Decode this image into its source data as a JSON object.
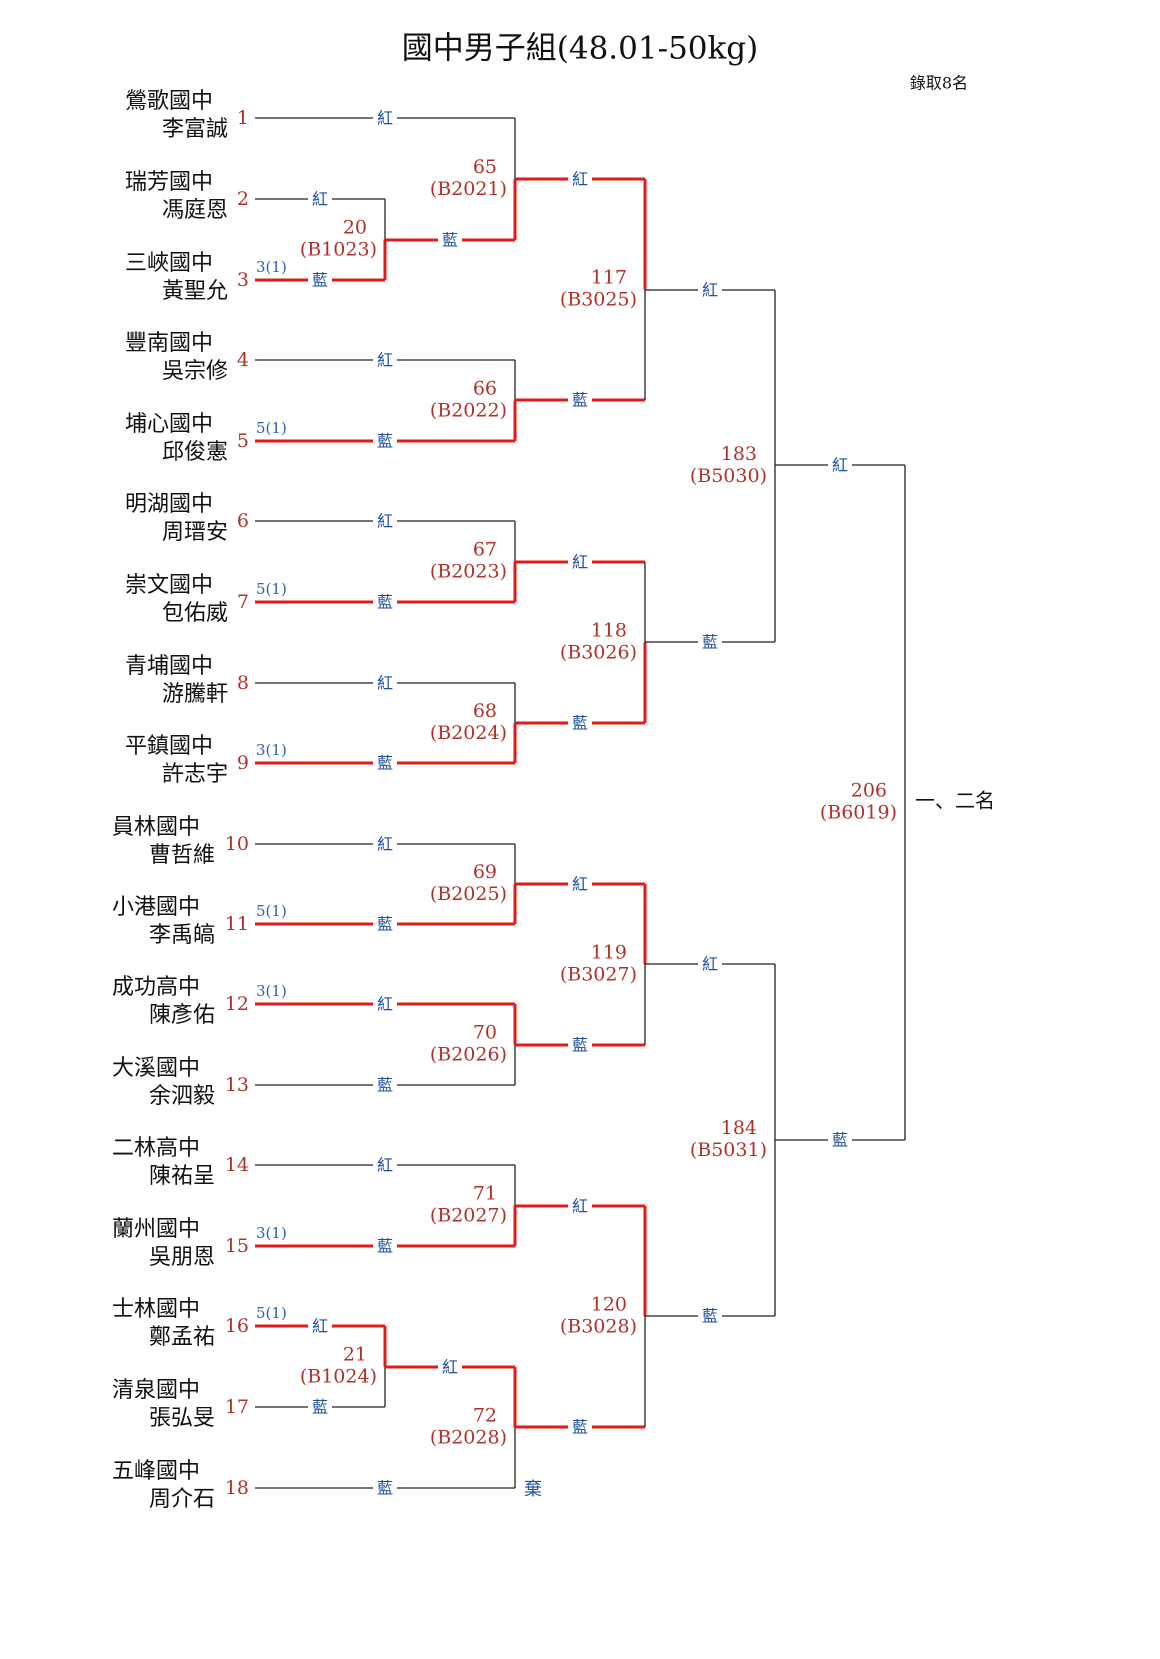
{
  "title": "國中男子組(48.01-50kg)",
  "note": "錄取8名",
  "players": [
    {
      "seed": 1,
      "school": "鶯歌國中",
      "name": "李富誠"
    },
    {
      "seed": 2,
      "school": "瑞芳國中",
      "name": "馮庭恩"
    },
    {
      "seed": 3,
      "school": "三峽國中",
      "name": "黃聖允",
      "score": "3(1)"
    },
    {
      "seed": 4,
      "school": "豐南國中",
      "name": "吳宗修"
    },
    {
      "seed": 5,
      "school": "埔心國中",
      "name": "邱俊憲",
      "score": "5(1)"
    },
    {
      "seed": 6,
      "school": "明湖國中",
      "name": "周瑨安"
    },
    {
      "seed": 7,
      "school": "崇文國中",
      "name": "包佑威",
      "score": "5(1)"
    },
    {
      "seed": 8,
      "school": "青埔國中",
      "name": "游騰軒"
    },
    {
      "seed": 9,
      "school": "平鎮國中",
      "name": "許志宇",
      "score": "3(1)"
    },
    {
      "seed": 10,
      "school": "員林國中",
      "name": "曹哲維"
    },
    {
      "seed": 11,
      "school": "小港國中",
      "name": "李禹皜",
      "score": "5(1)"
    },
    {
      "seed": 12,
      "school": "成功高中",
      "name": "陳彥佑",
      "score": "3(1)"
    },
    {
      "seed": 13,
      "school": "大溪國中",
      "name": "余泗毅"
    },
    {
      "seed": 14,
      "school": "二林高中",
      "name": "陳祐呈"
    },
    {
      "seed": 15,
      "school": "蘭州國中",
      "name": "吳朋恩",
      "score": "3(1)"
    },
    {
      "seed": 16,
      "school": "士林國中",
      "name": "鄭孟祐",
      "score": "5(1)"
    },
    {
      "seed": 17,
      "school": "清泉國中",
      "name": "張弘旻"
    },
    {
      "seed": 18,
      "school": "五峰國中",
      "name": "周介石"
    }
  ],
  "matches": [
    {
      "number": 20,
      "code": "(B1023)",
      "slots": [
        "紅",
        "藍"
      ]
    },
    {
      "number": 21,
      "code": "(B1024)",
      "slots": [
        "紅",
        "藍"
      ]
    },
    {
      "number": 65,
      "code": "(B2021)",
      "slots": [
        "紅",
        "藍"
      ]
    },
    {
      "number": 66,
      "code": "(B2022)",
      "slots": [
        "紅",
        "藍"
      ]
    },
    {
      "number": 67,
      "code": "(B2023)",
      "slots": [
        "紅",
        "藍"
      ]
    },
    {
      "number": 68,
      "code": "(B2024)",
      "slots": [
        "紅",
        "藍"
      ]
    },
    {
      "number": 69,
      "code": "(B2025)",
      "slots": [
        "紅",
        "藍"
      ]
    },
    {
      "number": 70,
      "code": "(B2026)",
      "slots": [
        "紅",
        "藍"
      ]
    },
    {
      "number": 71,
      "code": "(B2027)",
      "slots": [
        "紅",
        "藍"
      ]
    },
    {
      "number": 72,
      "code": "(B2028)",
      "slots": [
        "紅",
        "藍"
      ]
    },
    {
      "number": 117,
      "code": "(B3025)",
      "slots": [
        "紅",
        "藍"
      ]
    },
    {
      "number": 118,
      "code": "(B3026)",
      "slots": [
        "紅",
        "藍"
      ]
    },
    {
      "number": 119,
      "code": "(B3027)",
      "slots": [
        "紅",
        "藍"
      ]
    },
    {
      "number": 120,
      "code": "(B3028)",
      "slots": [
        "紅",
        "藍"
      ]
    },
    {
      "number": 183,
      "code": "(B5030)",
      "slots": [
        "紅",
        "藍"
      ]
    },
    {
      "number": 184,
      "code": "(B5031)",
      "slots": [
        "紅",
        "藍"
      ]
    },
    {
      "number": 206,
      "code": "(B6019)",
      "slots": [
        "紅",
        "藍"
      ]
    }
  ],
  "forfeit": "棄",
  "final_label": "一、二名"
}
